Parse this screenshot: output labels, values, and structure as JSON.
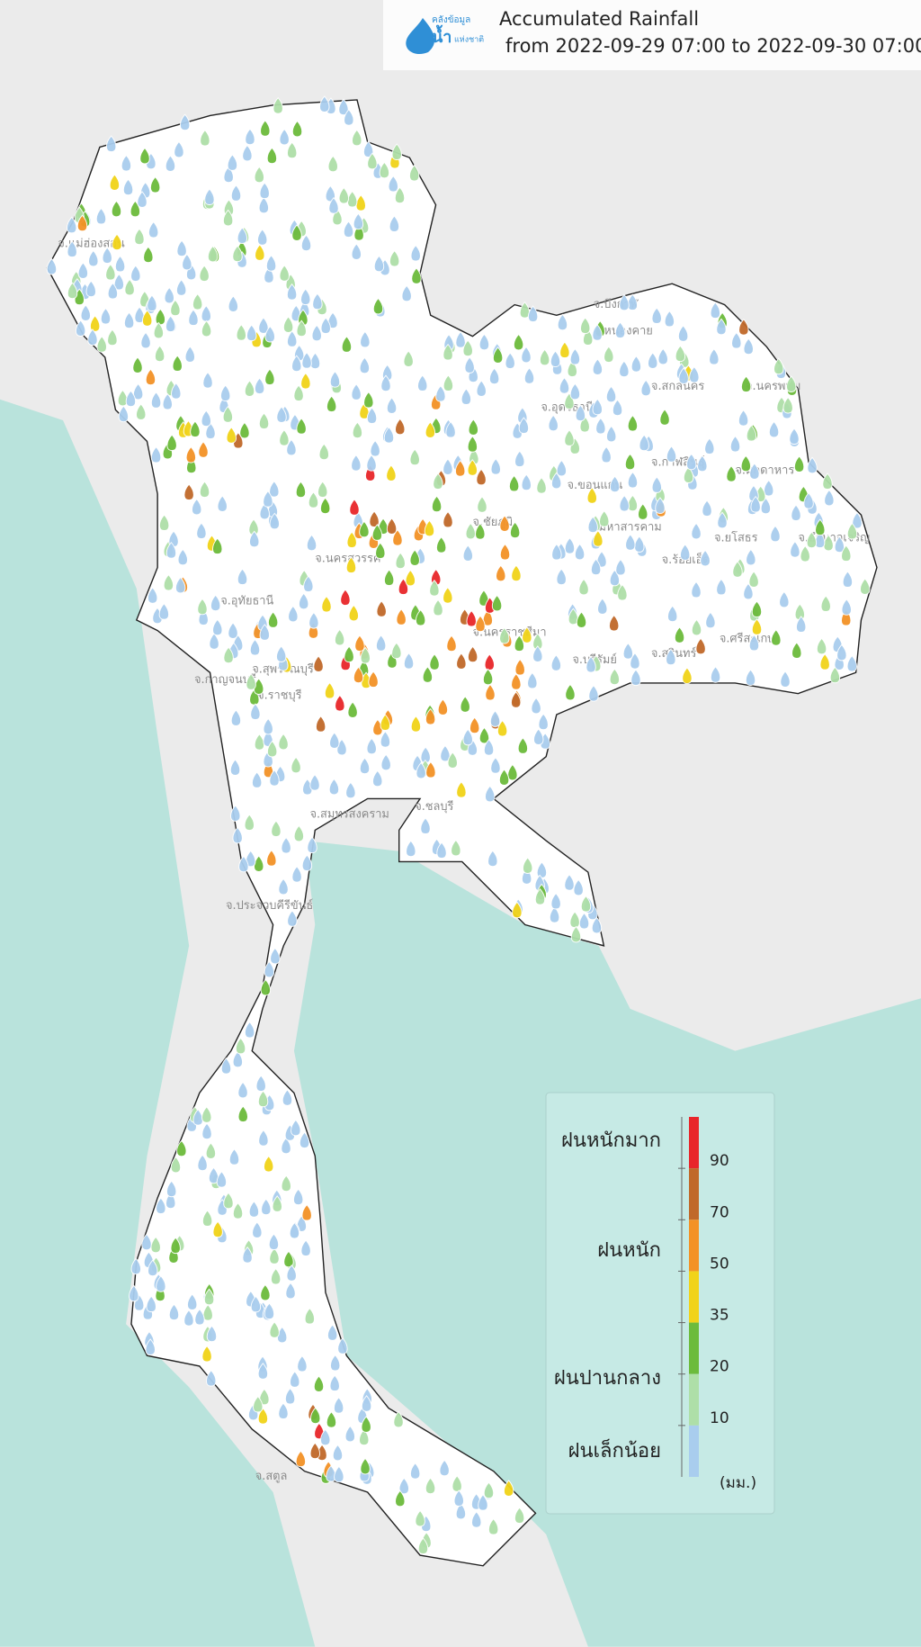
{
  "header": {
    "logo": [
      "คลังข้อมูล",
      "น้ำ",
      "แห่งชาติ"
    ],
    "title": "Accumulated Rainfall",
    "subtitle": "from  2022-09-29 07:00 to 2022-09-30 07:00"
  },
  "legend": {
    "levels": [
      "ฝนหนักมาก",
      "ฝนหนัก",
      "ฝนปานกลาง",
      "ฝนเล็กน้อย"
    ],
    "ticks": [
      90,
      70,
      50,
      35,
      20,
      10
    ],
    "colors": [
      "#e8262a",
      "#c0692a",
      "#f39226",
      "#f1d319",
      "#6cbb3c",
      "#aedfa8",
      "#a9cdee"
    ],
    "unit": "(มม.)"
  },
  "provinces": [
    "จ.แม่ฮ่องสอน",
    "จ.บึงกาฬ",
    "จ.หนองคาย",
    "จ.อุดรธานี",
    "จ.สกลนคร",
    "จ.นครพนม",
    "จ.กาฬสินธุ์",
    "จ.มุกดาหาร",
    "จ.ขอนแก่น",
    "จ.มหาสารคาม",
    "จ.ร้อยเอ็ด",
    "จ.ยโสธร",
    "จ.อำนาจเจริญ",
    "จ.ชัยภูมิ",
    "จ.นครสวรรค์",
    "จ.อุทัยธานี",
    "จ.นครราชสีมา",
    "จ.บุรีรัมย์",
    "จ.สุรินทร์",
    "จ.ศรีสะเกษ",
    "จ.กาญจนบุรี",
    "จ.สุพรรณบุรี",
    "จ.ราชบุรี",
    "จ.สมุทรสงคราม",
    "จ.ชลบุรี",
    "จ.ประจวบคีรีขันธ์",
    "จ.สตูล"
  ]
}
